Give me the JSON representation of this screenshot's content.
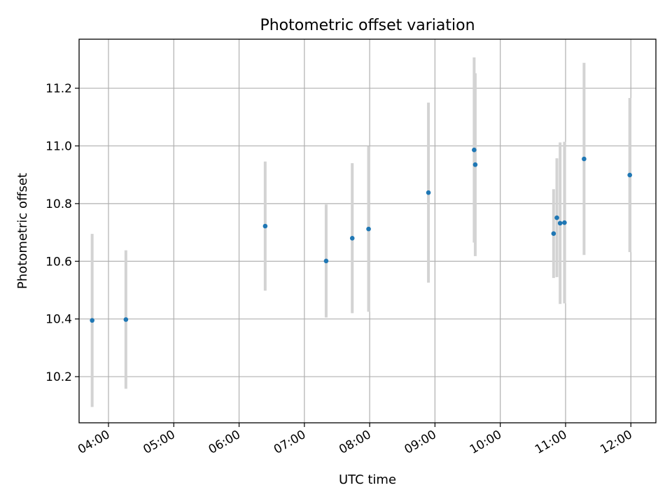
{
  "chart_data": {
    "type": "scatter",
    "title": "Photometric offset variation",
    "xlabel": "UTC time",
    "ylabel": "Photometric offset",
    "xlim": [
      "03:33",
      "12:23"
    ],
    "ylim": [
      10.04,
      11.37
    ],
    "x_ticks": [
      "04:00",
      "05:00",
      "06:00",
      "07:00",
      "08:00",
      "09:00",
      "10:00",
      "11:00",
      "12:00"
    ],
    "y_ticks": [
      10.2,
      10.4,
      10.6,
      10.8,
      11.0,
      11.2
    ],
    "y_tick_labels": [
      "10.2",
      "10.4",
      "10.6",
      "10.8",
      "11.0",
      "11.2"
    ],
    "grid": true,
    "marker_color": "#1f77b4",
    "errorbar_color": "#d3d3d3",
    "points": [
      {
        "x": "03:45",
        "y": 10.395,
        "ylow": 10.095,
        "yhigh": 10.695
      },
      {
        "x": "04:16",
        "y": 10.398,
        "ylow": 10.158,
        "yhigh": 10.638
      },
      {
        "x": "06:24",
        "y": 10.722,
        "ylow": 10.498,
        "yhigh": 10.946
      },
      {
        "x": "07:20",
        "y": 10.601,
        "ylow": 10.405,
        "yhigh": 10.797
      },
      {
        "x": "07:44",
        "y": 10.68,
        "ylow": 10.42,
        "yhigh": 10.94
      },
      {
        "x": "07:59",
        "y": 10.712,
        "ylow": 10.425,
        "yhigh": 10.999
      },
      {
        "x": "08:54",
        "y": 10.838,
        "ylow": 10.526,
        "yhigh": 11.15
      },
      {
        "x": "09:36",
        "y": 10.986,
        "ylow": 10.665,
        "yhigh": 11.307
      },
      {
        "x": "09:37",
        "y": 10.935,
        "ylow": 10.618,
        "yhigh": 11.252
      },
      {
        "x": "10:49",
        "y": 10.696,
        "ylow": 10.542,
        "yhigh": 10.85
      },
      {
        "x": "10:52",
        "y": 10.751,
        "ylow": 10.545,
        "yhigh": 10.957
      },
      {
        "x": "10:55",
        "y": 10.732,
        "ylow": 10.452,
        "yhigh": 11.012
      },
      {
        "x": "10:59",
        "y": 10.734,
        "ylow": 10.454,
        "yhigh": 11.014
      },
      {
        "x": "11:17",
        "y": 10.955,
        "ylow": 10.622,
        "yhigh": 11.288
      },
      {
        "x": "11:59",
        "y": 10.899,
        "ylow": 10.632,
        "yhigh": 11.166
      }
    ]
  }
}
